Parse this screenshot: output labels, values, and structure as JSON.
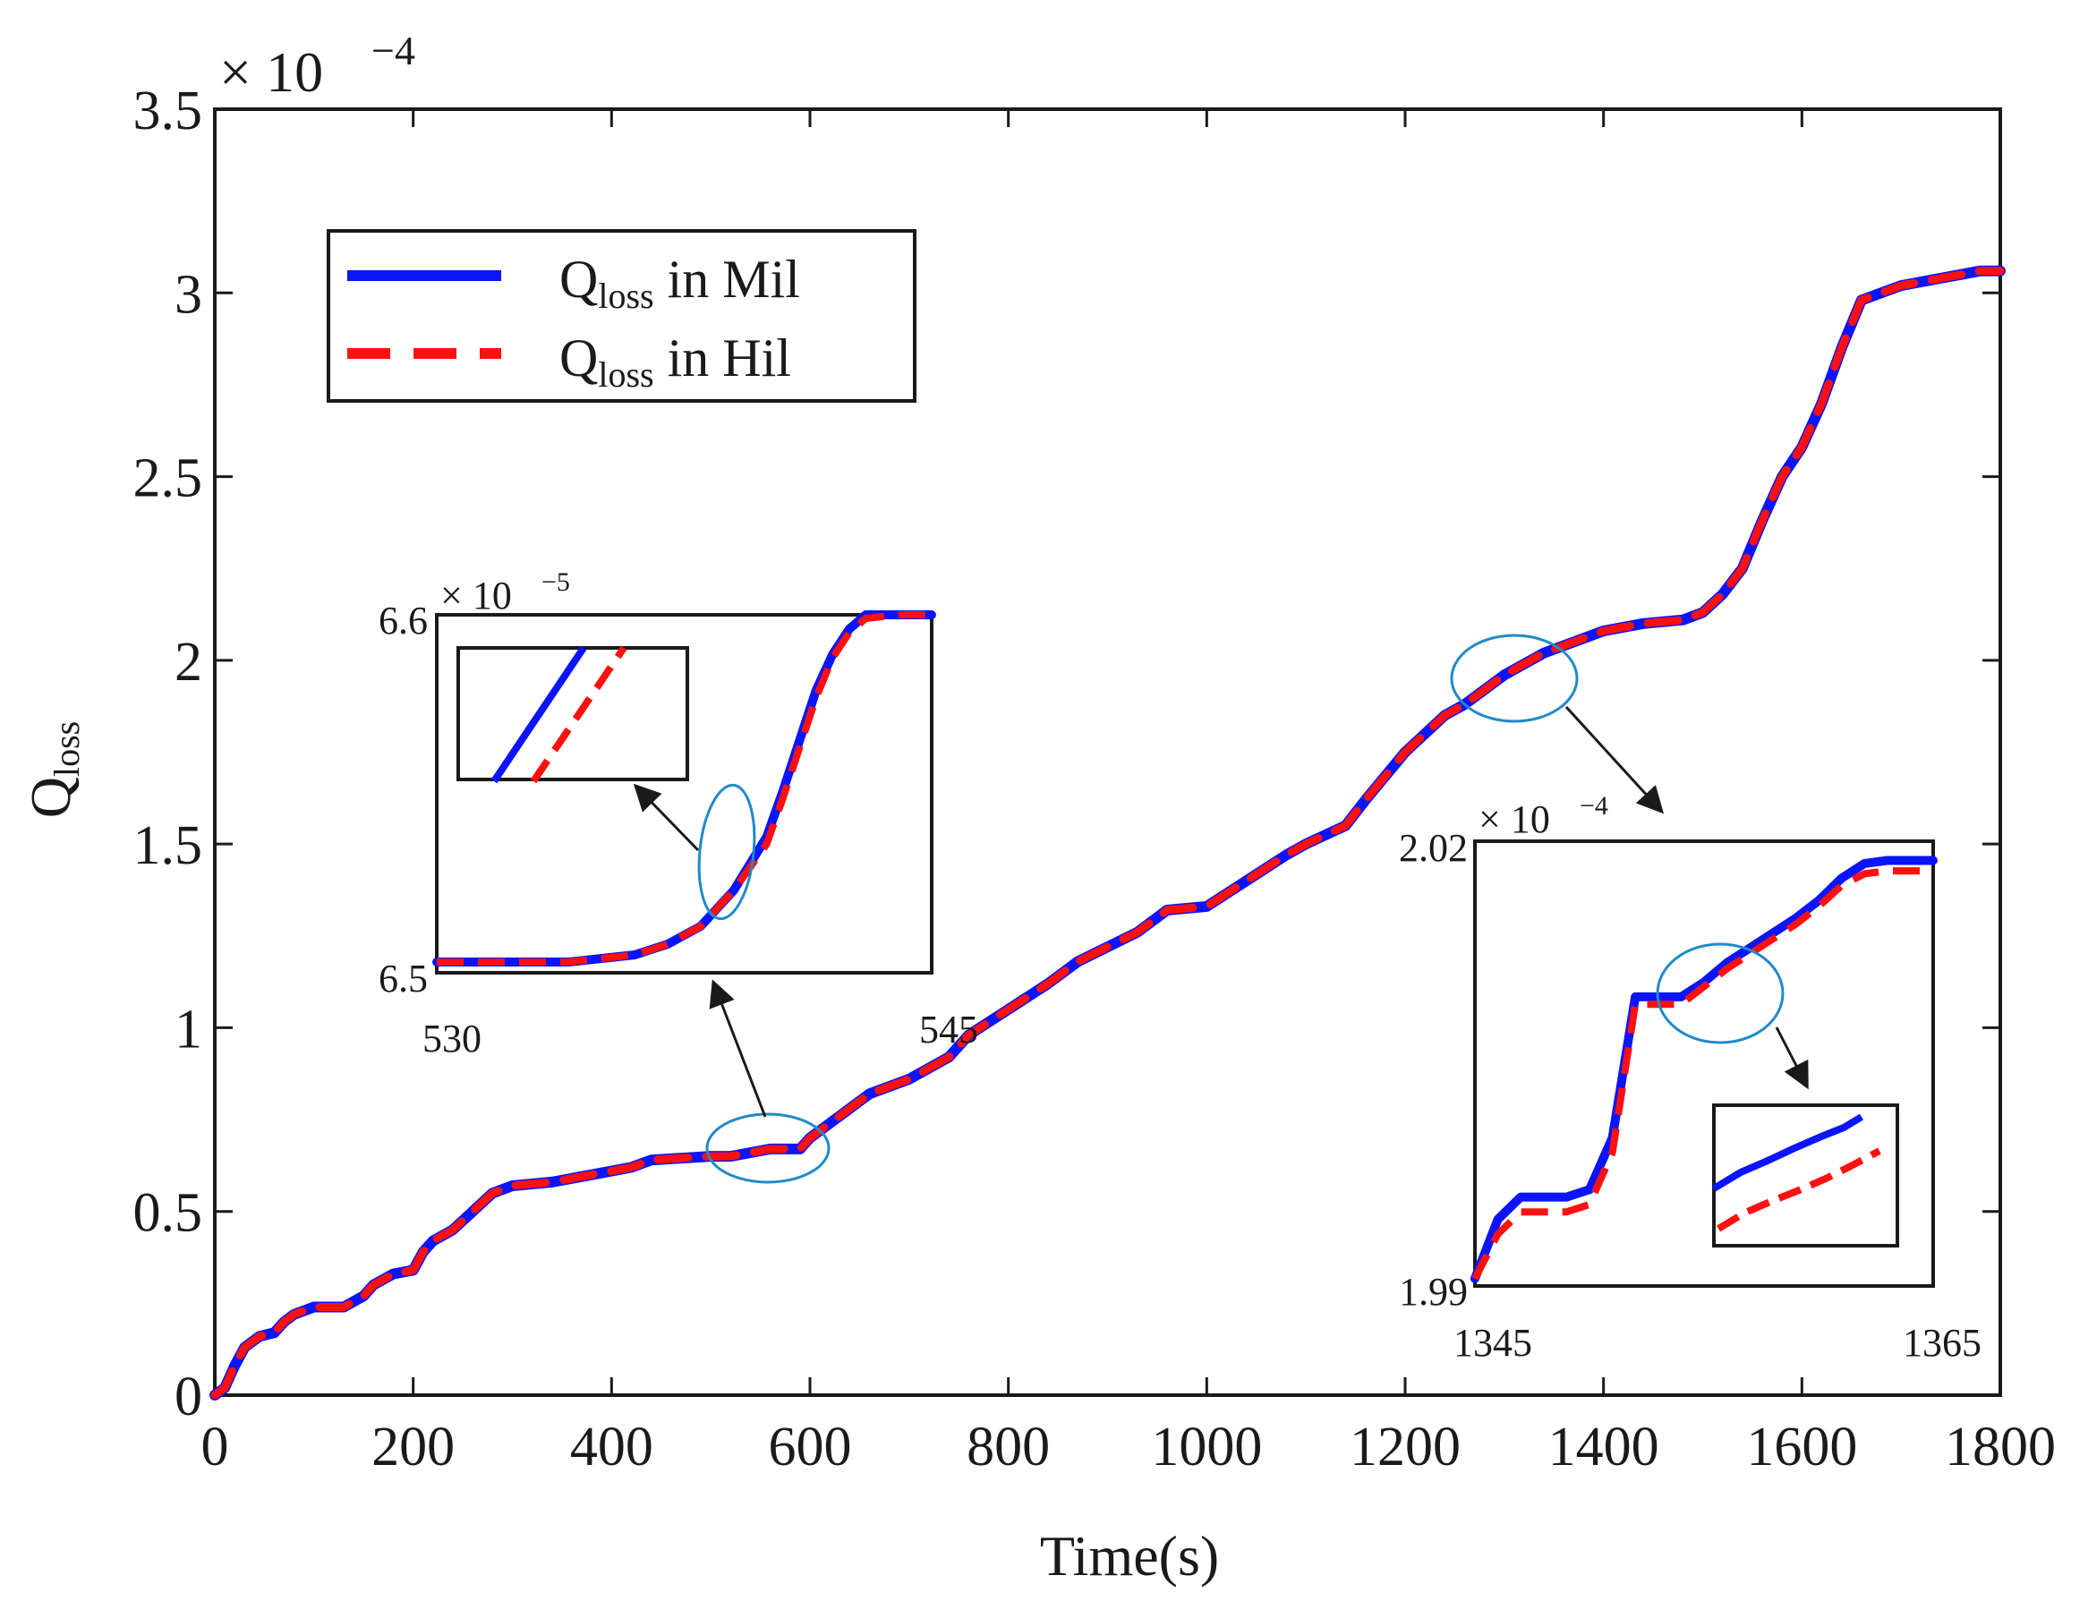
{
  "chart_data": {
    "type": "line",
    "title": "",
    "xlabel": "Time(s)",
    "ylabel": "Qloss",
    "ylabel_main": "Q",
    "ylabel_sub": "loss",
    "xlim": [
      0,
      1800
    ],
    "ylim": [
      0,
      3.5
    ],
    "y_exponent": "× 10",
    "y_exponent_power": "−4",
    "x_ticks": [
      "0",
      "200",
      "400",
      "600",
      "800",
      "1000",
      "1200",
      "1400",
      "1600",
      "1800"
    ],
    "y_ticks": [
      "0",
      "0.5",
      "1",
      "1.5",
      "2",
      "2.5",
      "3",
      "3.5"
    ],
    "x_tick_values": [
      0,
      200,
      400,
      600,
      800,
      1000,
      1200,
      1400,
      1600,
      1800
    ],
    "y_tick_values": [
      0,
      0.5,
      1,
      1.5,
      2,
      2.5,
      3,
      3.5
    ],
    "legend": {
      "location": "top-left",
      "entries": [
        {
          "main": "Q",
          "sub": "loss",
          "rest": " in Mil",
          "color": "#0a14ff",
          "style": "solid"
        },
        {
          "main": "Q",
          "sub": "loss",
          "rest": " in Hil",
          "color": "#ff1010",
          "style": "dashed"
        }
      ]
    },
    "series": [
      {
        "name": "Qloss in Mil",
        "color": "#0a14ff",
        "x": [
          0,
          10,
          20,
          30,
          45,
          60,
          70,
          80,
          100,
          120,
          130,
          150,
          160,
          180,
          200,
          210,
          220,
          240,
          260,
          280,
          290,
          300,
          340,
          380,
          420,
          440,
          500,
          520,
          540,
          560,
          590,
          600,
          620,
          640,
          660,
          700,
          740,
          760,
          800,
          840,
          870,
          900,
          930,
          960,
          1000,
          1040,
          1080,
          1100,
          1140,
          1160,
          1200,
          1240,
          1260,
          1300,
          1340,
          1380,
          1400,
          1440,
          1480,
          1500,
          1520,
          1540,
          1560,
          1580,
          1600,
          1620,
          1640,
          1660,
          1680,
          1700,
          1720,
          1740,
          1760,
          1780,
          1800
        ],
        "y": [
          0,
          0.02,
          0.08,
          0.13,
          0.16,
          0.17,
          0.2,
          0.22,
          0.24,
          0.24,
          0.24,
          0.27,
          0.3,
          0.33,
          0.34,
          0.39,
          0.42,
          0.45,
          0.5,
          0.55,
          0.56,
          0.57,
          0.58,
          0.6,
          0.62,
          0.64,
          0.65,
          0.65,
          0.66,
          0.67,
          0.67,
          0.7,
          0.74,
          0.78,
          0.82,
          0.86,
          0.92,
          0.98,
          1.05,
          1.12,
          1.18,
          1.22,
          1.26,
          1.32,
          1.33,
          1.4,
          1.47,
          1.5,
          1.55,
          1.62,
          1.75,
          1.85,
          1.88,
          1.96,
          2.02,
          2.06,
          2.08,
          2.1,
          2.11,
          2.13,
          2.18,
          2.25,
          2.38,
          2.5,
          2.58,
          2.7,
          2.85,
          2.98,
          3.0,
          3.02,
          3.03,
          3.04,
          3.05,
          3.06,
          3.06
        ]
      },
      {
        "name": "Qloss in Hil",
        "color": "#ff1010",
        "x": [
          0,
          10,
          20,
          30,
          45,
          60,
          70,
          80,
          100,
          120,
          130,
          150,
          160,
          180,
          200,
          210,
          220,
          240,
          260,
          280,
          290,
          300,
          340,
          380,
          420,
          440,
          500,
          520,
          540,
          560,
          590,
          600,
          620,
          640,
          660,
          700,
          740,
          760,
          800,
          840,
          870,
          900,
          930,
          960,
          1000,
          1040,
          1080,
          1100,
          1140,
          1160,
          1200,
          1240,
          1260,
          1300,
          1340,
          1380,
          1400,
          1440,
          1480,
          1500,
          1520,
          1540,
          1560,
          1580,
          1600,
          1620,
          1640,
          1660,
          1680,
          1700,
          1720,
          1740,
          1760,
          1780,
          1800
        ],
        "y": [
          0,
          0.02,
          0.08,
          0.13,
          0.16,
          0.17,
          0.2,
          0.22,
          0.24,
          0.24,
          0.24,
          0.27,
          0.3,
          0.33,
          0.34,
          0.39,
          0.42,
          0.45,
          0.5,
          0.55,
          0.56,
          0.57,
          0.58,
          0.6,
          0.62,
          0.64,
          0.65,
          0.65,
          0.66,
          0.67,
          0.67,
          0.7,
          0.74,
          0.78,
          0.82,
          0.86,
          0.92,
          0.98,
          1.05,
          1.12,
          1.18,
          1.22,
          1.26,
          1.32,
          1.33,
          1.4,
          1.47,
          1.5,
          1.55,
          1.62,
          1.75,
          1.85,
          1.88,
          1.96,
          2.02,
          2.06,
          2.08,
          2.1,
          2.11,
          2.13,
          2.18,
          2.25,
          2.38,
          2.5,
          2.58,
          2.7,
          2.85,
          2.98,
          3.0,
          3.02,
          3.03,
          3.04,
          3.05,
          3.06,
          3.06
        ]
      }
    ],
    "insets": [
      {
        "id": "inset1",
        "xlim": [
          530,
          545
        ],
        "ylim": [
          6.5,
          6.6
        ],
        "x_ticks": [
          "530",
          "545"
        ],
        "y_ticks": [
          "6.5",
          "6.6"
        ],
        "y_exponent": "× 10",
        "y_exponent_power": "−5",
        "mil": {
          "x": [
            530,
            532,
            534,
            536,
            537,
            538,
            539,
            540,
            540.5,
            541,
            541.5,
            542,
            542.5,
            543,
            544,
            545
          ],
          "y": [
            6.5,
            6.5,
            6.5,
            6.502,
            6.505,
            6.51,
            6.52,
            6.535,
            6.548,
            6.562,
            6.576,
            6.586,
            6.593,
            6.597,
            6.599,
            6.6
          ]
        },
        "hil": {
          "x": [
            530,
            532,
            534,
            536,
            537,
            538,
            539,
            540,
            540.5,
            541,
            541.5,
            542,
            542.5,
            543,
            544,
            545
          ],
          "y": [
            6.5,
            6.5,
            6.5,
            6.502,
            6.505,
            6.51,
            6.52,
            6.533,
            6.546,
            6.56,
            6.574,
            6.585,
            6.592,
            6.596,
            6.599,
            6.6
          ]
        }
      },
      {
        "id": "inset2",
        "xlim": [
          1345,
          1365
        ],
        "ylim": [
          1.99,
          2.02
        ],
        "x_ticks": [
          "1345",
          "1365"
        ],
        "y_ticks": [
          "1.99",
          "2.02"
        ],
        "y_exponent": "× 10",
        "y_exponent_power": "−4",
        "mil": {
          "x": [
            1345,
            1346,
            1347,
            1348,
            1349,
            1350,
            1351,
            1352,
            1353,
            1354,
            1355,
            1356,
            1357,
            1358,
            1359,
            1360,
            1361,
            1362,
            1363,
            1364,
            1365
          ],
          "y": [
            1.9905,
            1.9945,
            1.996,
            1.996,
            1.996,
            1.9965,
            2.0,
            2.0095,
            2.0095,
            2.0095,
            2.0105,
            2.0118,
            2.0128,
            2.0138,
            2.0148,
            2.016,
            2.0175,
            2.0185,
            2.0187,
            2.0187,
            2.0187
          ]
        },
        "hil": {
          "x": [
            1345,
            1346,
            1347,
            1348,
            1349,
            1350,
            1351,
            1352,
            1353,
            1354,
            1355,
            1356,
            1357,
            1358,
            1359,
            1360,
            1361,
            1362,
            1363,
            1364,
            1365
          ],
          "y": [
            1.9905,
            1.9935,
            1.995,
            1.995,
            1.995,
            1.9955,
            1.999,
            2.009,
            2.009,
            2.009,
            2.0102,
            2.0114,
            2.0124,
            2.0134,
            2.0144,
            2.0156,
            2.017,
            2.0178,
            2.018,
            2.018,
            2.018
          ]
        }
      }
    ]
  }
}
